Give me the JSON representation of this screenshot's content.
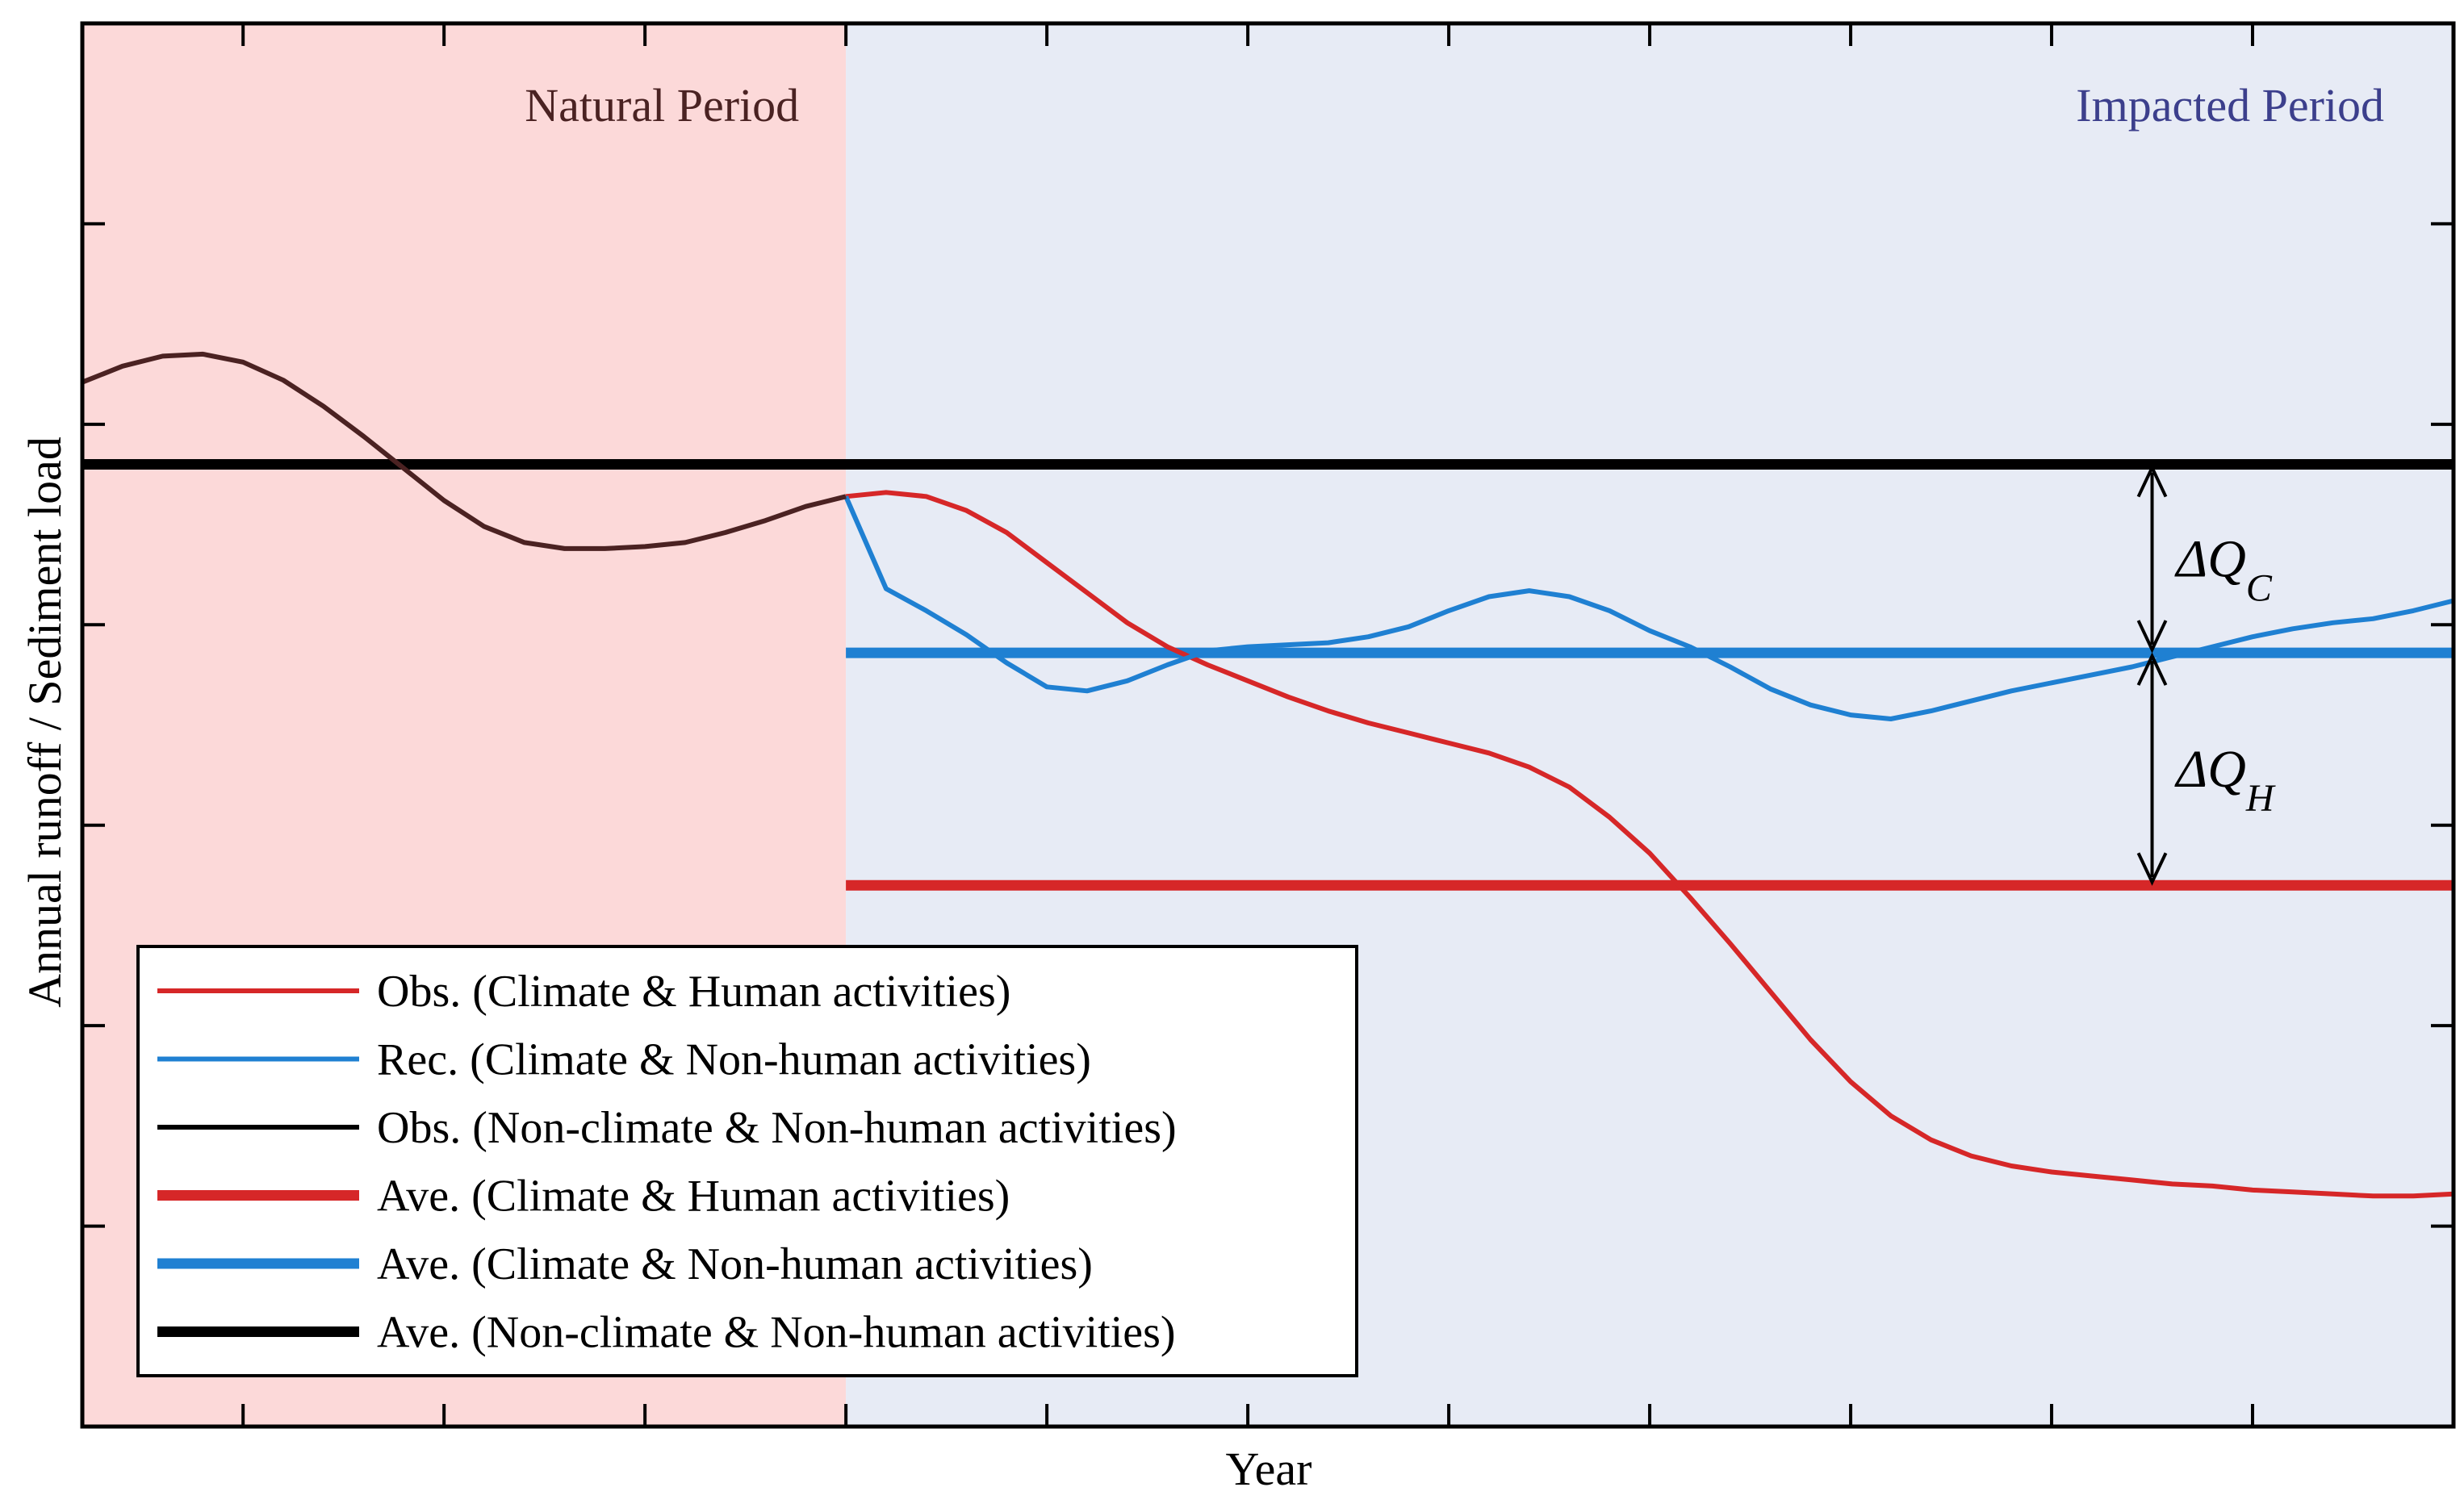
{
  "chart_data": {
    "type": "line",
    "xlabel": "Year",
    "ylabel": "Annual runoff / Sediment load",
    "xlim": [
      0,
      59
    ],
    "ylim": [
      0,
      7
    ],
    "split_x": 19,
    "colors": {
      "natural_bg": "#fcd9d9",
      "impacted_bg": "#e7ebf5",
      "natural_label": "#4a2222",
      "impacted_label": "#3c3f8c",
      "red": "#d62728",
      "blue": "#1f80d2",
      "black": "#000000",
      "dark": "#4b2222"
    },
    "periods": [
      {
        "key": "natural",
        "label": "Natural Period"
      },
      {
        "key": "impacted",
        "label": "Impacted Period"
      }
    ],
    "series": [
      {
        "key": "obs_natural",
        "name": "Obs. (Non-climate & Non-human activities)",
        "color": "#4b2222",
        "width": "thin",
        "x": [
          0,
          1,
          2,
          3,
          4,
          5,
          6,
          7,
          8,
          9,
          10,
          11,
          12,
          13,
          14,
          15,
          16,
          17,
          18,
          19
        ],
        "values": [
          5.21,
          5.29,
          5.34,
          5.35,
          5.31,
          5.22,
          5.09,
          4.94,
          4.78,
          4.62,
          4.49,
          4.41,
          4.38,
          4.38,
          4.39,
          4.41,
          4.46,
          4.52,
          4.59,
          4.64
        ]
      },
      {
        "key": "obs_climate_human",
        "name": "Obs. (Climate & Human activities)",
        "color": "#d62728",
        "width": "thin",
        "x": [
          19,
          20,
          21,
          22,
          23,
          24,
          25,
          26,
          27,
          28,
          29,
          30,
          31,
          32,
          33,
          34,
          35,
          36,
          37,
          38,
          39,
          40,
          41,
          42,
          43,
          44,
          45,
          46,
          47,
          48,
          49,
          50,
          51,
          52,
          53,
          54,
          55,
          56,
          57,
          58,
          59
        ],
        "values": [
          4.64,
          4.66,
          4.64,
          4.57,
          4.46,
          4.31,
          4.16,
          4.01,
          3.89,
          3.8,
          3.72,
          3.64,
          3.57,
          3.51,
          3.46,
          3.41,
          3.36,
          3.29,
          3.19,
          3.04,
          2.86,
          2.64,
          2.41,
          2.17,
          1.93,
          1.72,
          1.55,
          1.43,
          1.35,
          1.3,
          1.27,
          1.25,
          1.23,
          1.21,
          1.2,
          1.18,
          1.17,
          1.16,
          1.15,
          1.15,
          1.16
        ]
      },
      {
        "key": "rec_climate_nonhuman",
        "name": "Rec. (Climate & Non-human activities)",
        "color": "#1f80d2",
        "width": "thin",
        "x": [
          19,
          20,
          21,
          22,
          23,
          24,
          25,
          26,
          27,
          28,
          29,
          30,
          31,
          32,
          33,
          34,
          35,
          36,
          37,
          38,
          39,
          40,
          41,
          42,
          43,
          44,
          45,
          46,
          47,
          48,
          49,
          50,
          51,
          52,
          53,
          54,
          55,
          56,
          57,
          58,
          59
        ],
        "values": [
          4.64,
          4.18,
          4.07,
          3.95,
          3.81,
          3.69,
          3.67,
          3.72,
          3.8,
          3.87,
          3.89,
          3.9,
          3.91,
          3.94,
          3.99,
          4.07,
          4.14,
          4.17,
          4.14,
          4.07,
          3.97,
          3.89,
          3.79,
          3.68,
          3.6,
          3.55,
          3.53,
          3.57,
          3.62,
          3.67,
          3.71,
          3.75,
          3.79,
          3.84,
          3.89,
          3.94,
          3.98,
          4.01,
          4.03,
          4.07,
          4.12
        ]
      },
      {
        "key": "ave_climate_human",
        "name": "Ave. (Climate & Human activities)",
        "color": "#d62728",
        "width": "thick",
        "x": [
          19,
          59
        ],
        "values": [
          2.7,
          2.7
        ]
      },
      {
        "key": "ave_climate_nonhuman",
        "name": "Ave. (Climate & Non-human activities)",
        "color": "#1f80d2",
        "width": "thick",
        "x": [
          19,
          59
        ],
        "values": [
          3.86,
          3.86
        ]
      },
      {
        "key": "ave_nonclimate_nonhuman",
        "name": "Ave. (Non-climate & Non-human activities)",
        "color": "#000000",
        "width": "thick",
        "x": [
          0,
          59
        ],
        "values": [
          4.8,
          4.8
        ]
      }
    ],
    "legend": {
      "position": "bottom-left",
      "entries": [
        {
          "label": "Obs. (Climate & Human activities)",
          "color": "#d62728",
          "width": "thin"
        },
        {
          "label": "Rec. (Climate & Non-human activities)",
          "color": "#1f80d2",
          "width": "thin"
        },
        {
          "label": "Obs. (Non-climate & Non-human activities)",
          "color": "#000000",
          "width": "thin"
        },
        {
          "label": "Ave. (Climate & Human activities)",
          "color": "#d62728",
          "width": "thick"
        },
        {
          "label": "Ave. (Climate & Non-human activities)",
          "color": "#1f80d2",
          "width": "thick"
        },
        {
          "label": "Ave. (Non-climate & Non-human activities)",
          "color": "#000000",
          "width": "thick"
        }
      ]
    },
    "annotations": [
      {
        "key": "dqc",
        "symbol": "ΔQ",
        "subscript": "C",
        "x": 51.5,
        "from": 4.8,
        "to": 3.86
      },
      {
        "key": "dqh",
        "symbol": "ΔQ",
        "subscript": "H",
        "x": 51.5,
        "from": 3.86,
        "to": 2.7
      }
    ]
  }
}
